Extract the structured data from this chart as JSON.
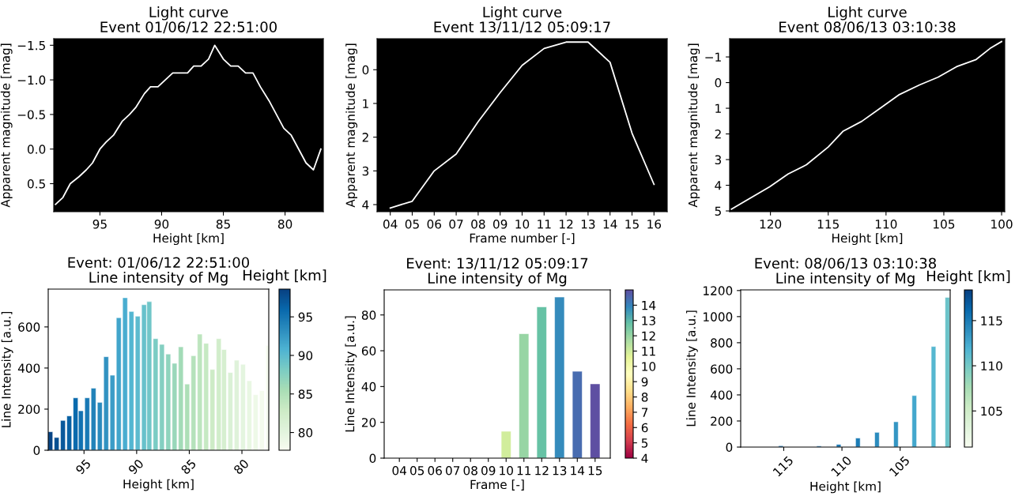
{
  "chart_data": [
    {
      "type": "line",
      "title": "Light curve",
      "subtitle": "Event 01/06/12 22:51:00",
      "xlabel": "Height [km]",
      "ylabel": "Apparent magnitude [mag]",
      "x": [
        98.6,
        98.0,
        97.4,
        96.7,
        96.1,
        95.6,
        95.0,
        94.5,
        93.9,
        93.2,
        92.6,
        92.1,
        91.4,
        90.9,
        90.3,
        89.7,
        89.1,
        88.5,
        87.9,
        87.4,
        86.8,
        86.2,
        85.7,
        85.0,
        84.4,
        83.8,
        83.2,
        82.6,
        82.0,
        81.3,
        80.7,
        80.1,
        79.5,
        78.9,
        78.3,
        77.7,
        77.1
      ],
      "series": [
        {
          "color": "#ffffff",
          "values": [
            0.8,
            0.7,
            0.5,
            0.4,
            0.3,
            0.2,
            0.0,
            -0.1,
            -0.2,
            -0.4,
            -0.5,
            -0.6,
            -0.8,
            -0.9,
            -0.9,
            -1.0,
            -1.1,
            -1.1,
            -1.1,
            -1.2,
            -1.2,
            -1.3,
            -1.5,
            -1.3,
            -1.2,
            -1.2,
            -1.1,
            -1.1,
            -0.9,
            -0.7,
            -0.5,
            -0.3,
            -0.2,
            0.0,
            0.2,
            0.3,
            0.0
          ]
        }
      ],
      "xlim": [
        98.74,
        76.9
      ],
      "xticks": [
        95,
        90,
        85,
        80
      ],
      "ylim": [
        0.905,
        -1.595
      ],
      "yticks": [
        {
          "value": -1.5,
          "label": "−1.5"
        },
        {
          "value": -1.0,
          "label": "−1.0"
        },
        {
          "value": -0.5,
          "label": "−0.5"
        },
        {
          "value": 0.0,
          "label": "0.0"
        },
        {
          "value": 0.5,
          "label": "0.5"
        }
      ]
    },
    {
      "type": "line",
      "title": "Light curve",
      "subtitle": "Event 13/11/12 05:09:17",
      "xlabel": "Frame number [-]",
      "ylabel": "Apparent magnitude [mag]",
      "categories": [
        "04",
        "05",
        "06",
        "07",
        "08",
        "09",
        "10",
        "11",
        "12",
        "13",
        "14",
        "15",
        "16"
      ],
      "series": [
        {
          "color": "#ffffff",
          "values": [
            4.1,
            3.9,
            3.0,
            2.5,
            1.54,
            0.68,
            -0.13,
            -0.63,
            -0.82,
            -0.82,
            -0.22,
            1.88,
            3.4
          ]
        }
      ],
      "ylim": [
        4.21,
        -0.92
      ],
      "yticks": [
        0,
        1,
        2,
        3,
        4
      ]
    },
    {
      "type": "line",
      "title": "Light curve",
      "subtitle": "Event 08/06/13 03:10:38",
      "xlabel": "Height [km]",
      "ylabel": "Apparent magnitude [mag]",
      "x": [
        123.37,
        120.07,
        118.47,
        116.88,
        115.0,
        113.7,
        112.1,
        110.5,
        108.9,
        107.1,
        105.5,
        103.9,
        102.2,
        101.0,
        100.0
      ],
      "series": [
        {
          "color": "#ffffff",
          "values": [
            4.93,
            4.06,
            3.56,
            3.2,
            2.51,
            1.89,
            1.51,
            1.0,
            0.48,
            0.09,
            -0.21,
            -0.62,
            -0.9,
            -1.33,
            -1.6
          ]
        }
      ],
      "xlim": [
        123.53,
        99.73
      ],
      "xticks": [
        120,
        115,
        110,
        105,
        100
      ],
      "ylim": [
        5.03,
        -1.71
      ],
      "yticks": [
        {
          "value": -1,
          "label": "−1"
        },
        0,
        1,
        2,
        3,
        4,
        5
      ]
    },
    {
      "type": "bar",
      "title": "Event: 01/06/12 22:51:00",
      "subtitle": "Line intensity of Mg",
      "xlabel": "Height [km]",
      "ylabel": "Line Intensity [a.u.]",
      "clabel": "Height [km]",
      "x": [
        98.2,
        97.6,
        97.0,
        96.4,
        95.8,
        95.3,
        94.7,
        94.1,
        93.5,
        92.9,
        92.3,
        91.7,
        91.1,
        90.5,
        89.9,
        89.3,
        88.8,
        88.2,
        87.6,
        87.0,
        86.4,
        85.8,
        85.2,
        84.6,
        84.0,
        83.4,
        82.8,
        82.2,
        81.7,
        81.1,
        80.5,
        79.9,
        79.3,
        78.7,
        78.1,
        77.5
      ],
      "values": [
        90,
        62,
        145,
        167,
        255,
        192,
        255,
        302,
        233,
        455,
        365,
        645,
        742,
        675,
        652,
        708,
        723,
        543,
        515,
        468,
        423,
        503,
        322,
        460,
        565,
        520,
        393,
        543,
        490,
        378,
        438,
        418,
        338,
        270,
        290,
        510
      ],
      "cvalues": [
        98.2,
        97.6,
        97.0,
        96.4,
        95.8,
        95.3,
        94.7,
        94.1,
        93.5,
        92.9,
        92.3,
        91.7,
        91.1,
        90.5,
        89.9,
        89.3,
        88.8,
        88.2,
        87.6,
        87.0,
        86.4,
        85.8,
        85.2,
        84.6,
        84.0,
        83.4,
        82.8,
        82.2,
        81.7,
        81.1,
        80.5,
        79.9,
        79.3,
        78.7,
        78.1,
        77.5
      ],
      "clim": [
        77.7,
        98.6
      ],
      "cticks": [
        80,
        85,
        90,
        95
      ],
      "xlim": [
        98.4,
        77.45
      ],
      "xticks": [
        95,
        90,
        85,
        80
      ],
      "ylim": [
        0,
        784
      ],
      "yticks": [
        0,
        200,
        400,
        600
      ]
    },
    {
      "type": "bar",
      "title": "Event: 13/11/12 05:09:17",
      "subtitle": "Line intensity of Mg",
      "xlabel": "Frame [-]",
      "ylabel": "Line Intensity [a.u.]",
      "categories": [
        "04",
        "05",
        "06",
        "07",
        "08",
        "09",
        "10",
        "11",
        "12",
        "13",
        "14",
        "15"
      ],
      "values": [
        0,
        0,
        0,
        0,
        0,
        0,
        15,
        69.5,
        84.5,
        90,
        48.5,
        41.5
      ],
      "cvalues": [
        null,
        null,
        null,
        null,
        null,
        null,
        11,
        12,
        12.8,
        13.8,
        14.4,
        15
      ],
      "clim": [
        4,
        15
      ],
      "cticks": [
        4,
        5,
        6,
        7,
        8,
        9,
        10,
        11,
        12,
        13,
        14
      ],
      "ylim": [
        0,
        94
      ],
      "yticks": [
        0,
        20,
        40,
        60,
        80
      ]
    },
    {
      "type": "bar",
      "title": "Event: 08/06/13 03:10:38",
      "subtitle": "Line intensity of Mg",
      "xlabel": "Height [km]",
      "ylabel": "Line Intensity [a.u.]",
      "clabel": "Height [km]",
      "x": [
        115.25,
        111.97,
        110.28,
        108.63,
        106.99,
        105.36,
        103.78,
        102.13,
        100.94
      ],
      "values": [
        10,
        8,
        20,
        69,
        113,
        194,
        395,
        771,
        1148
      ],
      "cvalues": [
        116.5,
        116,
        115.5,
        115,
        114,
        113.5,
        112.5,
        111.5,
        110.5
      ],
      "clim": [
        101,
        118.4
      ],
      "cticks": [
        105,
        110,
        115
      ],
      "xlim": [
        118.7,
        100.7
      ],
      "xticks": [
        115,
        110,
        105
      ],
      "ylim": [
        0,
        1205
      ],
      "yticks": [
        0,
        200,
        400,
        600,
        800,
        1000,
        1200
      ]
    }
  ]
}
